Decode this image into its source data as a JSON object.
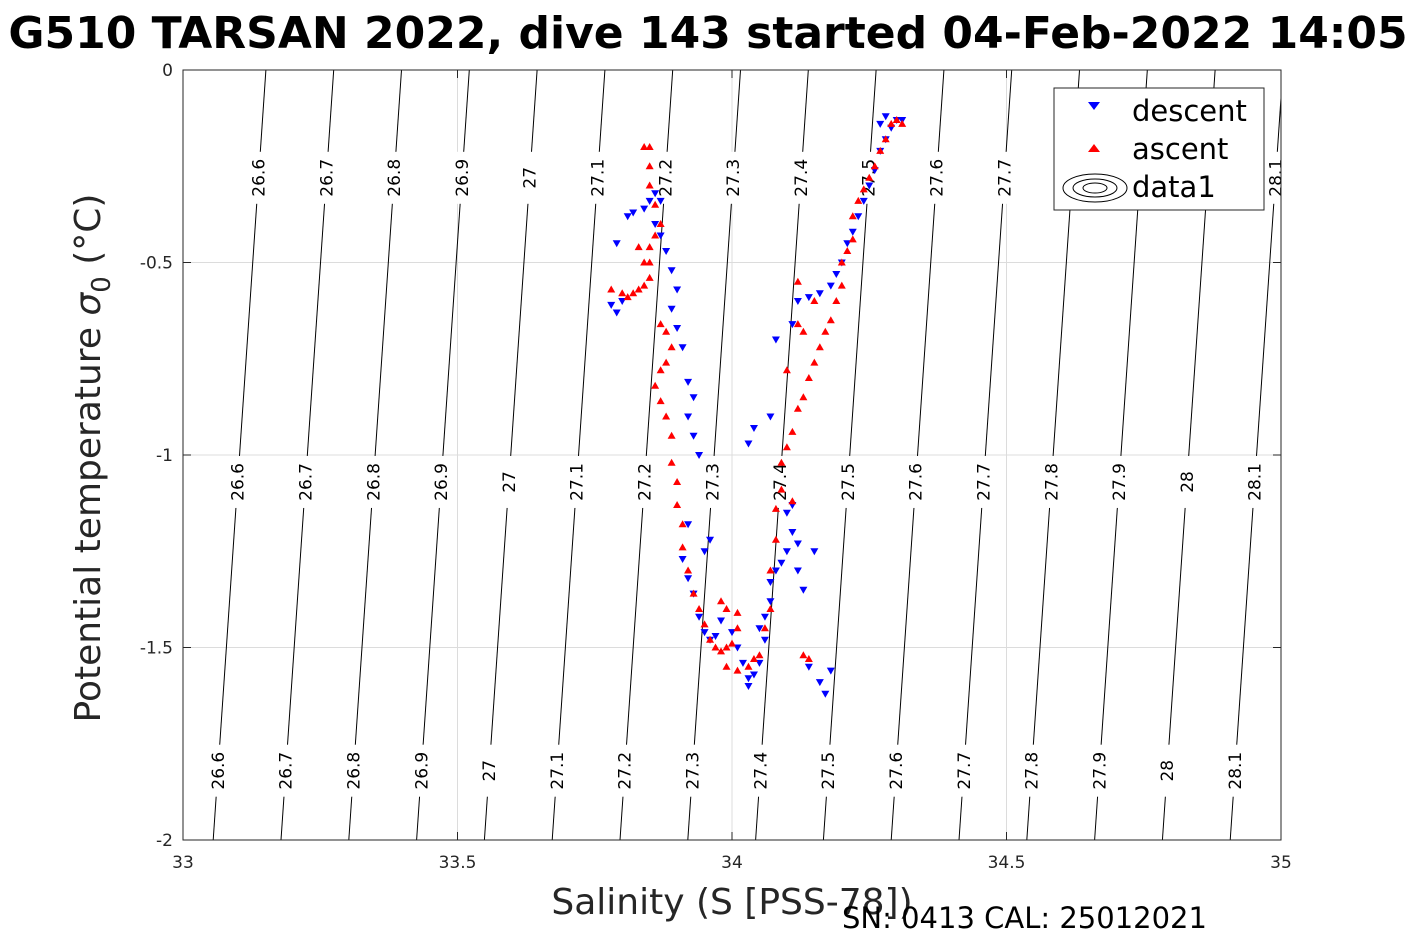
{
  "title": "G510 TARSAN 2022, dive 143 started 04-Feb-2022 14:05",
  "footer": "SN: 0413  CAL: 25012021",
  "chart_data": {
    "type": "scatter",
    "title": "G510 TARSAN 2022, dive 143 started 04-Feb-2022 14:05",
    "xlabel": "Salinity (S [PSS-78])",
    "ylabel_main": "Potential temperature ",
    "ylabel_sigma": "σ",
    "ylabel_sub": "0",
    "ylabel_unit": " (°C)",
    "xlim": [
      33,
      35
    ],
    "ylim": [
      -2,
      0
    ],
    "xticks": [
      33,
      33.5,
      34,
      34.5,
      35
    ],
    "xtick_labels": [
      "33",
      "33.5",
      "34",
      "34.5",
      "35"
    ],
    "yticks": [
      0,
      -0.5,
      -1,
      -1.5,
      -2
    ],
    "ytick_labels": [
      "0",
      "-0.5",
      "-1",
      "-1.5",
      "-2"
    ],
    "grid": true,
    "legend": {
      "placement": "top-right",
      "entries": [
        {
          "label": "descent",
          "marker": "triangle-down",
          "color": "#0000ff"
        },
        {
          "label": "ascent",
          "marker": "triangle-up",
          "color": "#ff0000"
        },
        {
          "label": "data1",
          "marker": "contour"
        }
      ]
    },
    "contours": {
      "levels": [
        26.6,
        26.7,
        26.8,
        26.9,
        27,
        27.1,
        27.2,
        27.3,
        27.4,
        27.5,
        27.6,
        27.7,
        27.8,
        27.9,
        28,
        28.1
      ],
      "labels_top": [
        "26.6",
        "26.7",
        "26.8",
        "26.9",
        "27",
        "27.1",
        "27.2",
        "27.3",
        "27.4",
        "27.5",
        "27.6",
        "27.7",
        "28.1"
      ],
      "labels_mid": [
        "26.6",
        "26.7",
        "26.8",
        "26.9",
        "27",
        "27.1",
        "27.2",
        "27.3",
        "27.4",
        "27.5",
        "27.6",
        "27.7",
        "27.8",
        "27.9",
        "28",
        "28.1"
      ],
      "labels_low": [
        "26.6",
        "26.7",
        "26.8",
        "26.9",
        "27",
        "27.1",
        "27.2",
        "27.3",
        "27.4",
        "27.5",
        "27.6",
        "27.7",
        "27.8",
        "27.9",
        "28",
        "28.1"
      ]
    },
    "series": [
      {
        "name": "descent",
        "color": "#0000ff",
        "marker": "triangle-down",
        "points": [
          [
            33.78,
            -0.61
          ],
          [
            33.79,
            -0.63
          ],
          [
            33.8,
            -0.6
          ],
          [
            33.79,
            -0.45
          ],
          [
            33.81,
            -0.38
          ],
          [
            33.82,
            -0.37
          ],
          [
            33.84,
            -0.36
          ],
          [
            33.85,
            -0.34
          ],
          [
            33.86,
            -0.32
          ],
          [
            33.87,
            -0.34
          ],
          [
            33.86,
            -0.4
          ],
          [
            33.87,
            -0.43
          ],
          [
            33.88,
            -0.47
          ],
          [
            33.89,
            -0.52
          ],
          [
            33.9,
            -0.57
          ],
          [
            33.89,
            -0.62
          ],
          [
            33.9,
            -0.67
          ],
          [
            33.91,
            -0.72
          ],
          [
            33.92,
            -0.81
          ],
          [
            33.93,
            -0.85
          ],
          [
            33.92,
            -0.9
          ],
          [
            33.93,
            -0.95
          ],
          [
            33.94,
            -1.0
          ],
          [
            33.92,
            -1.18
          ],
          [
            33.91,
            -1.27
          ],
          [
            33.92,
            -1.32
          ],
          [
            33.93,
            -1.36
          ],
          [
            33.94,
            -1.42
          ],
          [
            33.95,
            -1.46
          ],
          [
            33.96,
            -1.48
          ],
          [
            33.97,
            -1.47
          ],
          [
            33.96,
            -1.22
          ],
          [
            33.95,
            -1.25
          ],
          [
            33.98,
            -1.43
          ],
          [
            34.0,
            -1.46
          ],
          [
            34.01,
            -1.5
          ],
          [
            34.02,
            -1.54
          ],
          [
            34.03,
            -1.58
          ],
          [
            34.03,
            -1.6
          ],
          [
            34.04,
            -1.57
          ],
          [
            34.05,
            -1.54
          ],
          [
            34.06,
            -1.48
          ],
          [
            34.05,
            -1.45
          ],
          [
            34.06,
            -1.42
          ],
          [
            34.07,
            -1.38
          ],
          [
            34.07,
            -1.33
          ],
          [
            34.08,
            -1.3
          ],
          [
            34.09,
            -1.28
          ],
          [
            34.1,
            -1.25
          ],
          [
            34.11,
            -1.2
          ],
          [
            34.1,
            -1.15
          ],
          [
            34.11,
            -1.13
          ],
          [
            34.12,
            -1.23
          ],
          [
            34.12,
            -1.3
          ],
          [
            34.13,
            -1.35
          ],
          [
            34.15,
            -1.25
          ],
          [
            34.14,
            -1.55
          ],
          [
            34.16,
            -1.59
          ],
          [
            34.17,
            -1.62
          ],
          [
            34.18,
            -1.56
          ],
          [
            34.04,
            -0.93
          ],
          [
            34.03,
            -0.97
          ],
          [
            34.07,
            -0.9
          ],
          [
            34.08,
            -0.7
          ],
          [
            34.11,
            -0.66
          ],
          [
            34.12,
            -0.6
          ],
          [
            34.14,
            -0.59
          ],
          [
            34.16,
            -0.58
          ],
          [
            34.18,
            -0.56
          ],
          [
            34.19,
            -0.53
          ],
          [
            34.2,
            -0.5
          ],
          [
            34.21,
            -0.45
          ],
          [
            34.22,
            -0.42
          ],
          [
            34.23,
            -0.38
          ],
          [
            34.24,
            -0.34
          ],
          [
            34.25,
            -0.3
          ],
          [
            34.26,
            -0.26
          ],
          [
            34.27,
            -0.21
          ],
          [
            34.28,
            -0.18
          ],
          [
            34.29,
            -0.15
          ],
          [
            34.3,
            -0.13
          ],
          [
            34.31,
            -0.13
          ],
          [
            34.28,
            -0.12
          ],
          [
            34.27,
            -0.14
          ]
        ]
      },
      {
        "name": "ascent",
        "color": "#ff0000",
        "marker": "triangle-up",
        "points": [
          [
            33.78,
            -0.57
          ],
          [
            33.8,
            -0.58
          ],
          [
            33.81,
            -0.59
          ],
          [
            33.82,
            -0.58
          ],
          [
            33.83,
            -0.57
          ],
          [
            33.84,
            -0.56
          ],
          [
            33.85,
            -0.54
          ],
          [
            33.84,
            -0.5
          ],
          [
            33.85,
            -0.46
          ],
          [
            33.86,
            -0.43
          ],
          [
            33.87,
            -0.4
          ],
          [
            33.86,
            -0.35
          ],
          [
            33.85,
            -0.3
          ],
          [
            33.85,
            -0.25
          ],
          [
            33.85,
            -0.2
          ],
          [
            33.84,
            -0.2
          ],
          [
            33.83,
            -0.46
          ],
          [
            33.85,
            -0.5
          ],
          [
            33.87,
            -0.66
          ],
          [
            33.88,
            -0.68
          ],
          [
            33.89,
            -0.72
          ],
          [
            33.88,
            -0.76
          ],
          [
            33.87,
            -0.78
          ],
          [
            33.86,
            -0.82
          ],
          [
            33.87,
            -0.86
          ],
          [
            33.88,
            -0.9
          ],
          [
            33.89,
            -0.95
          ],
          [
            33.89,
            -1.02
          ],
          [
            33.9,
            -1.07
          ],
          [
            33.9,
            -1.13
          ],
          [
            33.91,
            -1.18
          ],
          [
            33.91,
            -1.24
          ],
          [
            33.92,
            -1.3
          ],
          [
            33.93,
            -1.36
          ],
          [
            33.94,
            -1.4
          ],
          [
            33.95,
            -1.44
          ],
          [
            33.96,
            -1.48
          ],
          [
            33.97,
            -1.5
          ],
          [
            33.98,
            -1.51
          ],
          [
            33.99,
            -1.5
          ],
          [
            34.0,
            -1.49
          ],
          [
            34.01,
            -1.45
          ],
          [
            34.01,
            -1.41
          ],
          [
            33.99,
            -1.4
          ],
          [
            33.98,
            -1.38
          ],
          [
            33.99,
            -1.55
          ],
          [
            34.01,
            -1.56
          ],
          [
            34.03,
            -1.55
          ],
          [
            34.04,
            -1.53
          ],
          [
            34.05,
            -1.52
          ],
          [
            34.06,
            -1.45
          ],
          [
            34.07,
            -1.4
          ],
          [
            34.07,
            -1.3
          ],
          [
            34.08,
            -1.22
          ],
          [
            34.08,
            -1.14
          ],
          [
            34.09,
            -1.09
          ],
          [
            34.09,
            -1.02
          ],
          [
            34.1,
            -0.98
          ],
          [
            34.11,
            -0.94
          ],
          [
            34.12,
            -0.88
          ],
          [
            34.13,
            -0.85
          ],
          [
            34.14,
            -0.8
          ],
          [
            34.15,
            -0.76
          ],
          [
            34.16,
            -0.72
          ],
          [
            34.17,
            -0.68
          ],
          [
            34.18,
            -0.65
          ],
          [
            34.19,
            -0.6
          ],
          [
            34.2,
            -0.56
          ],
          [
            34.2,
            -0.5
          ],
          [
            34.21,
            -0.47
          ],
          [
            34.22,
            -0.44
          ],
          [
            34.22,
            -0.38
          ],
          [
            34.23,
            -0.34
          ],
          [
            34.24,
            -0.31
          ],
          [
            34.25,
            -0.28
          ],
          [
            34.26,
            -0.25
          ],
          [
            34.27,
            -0.21
          ],
          [
            34.28,
            -0.18
          ],
          [
            34.29,
            -0.14
          ],
          [
            34.3,
            -0.13
          ],
          [
            34.31,
            -0.14
          ],
          [
            34.12,
            -0.55
          ],
          [
            34.12,
            -0.66
          ],
          [
            34.13,
            -0.68
          ],
          [
            34.15,
            -0.6
          ],
          [
            34.1,
            -0.78
          ],
          [
            34.11,
            -1.12
          ],
          [
            34.13,
            -1.52
          ],
          [
            34.14,
            -1.53
          ]
        ]
      }
    ]
  }
}
